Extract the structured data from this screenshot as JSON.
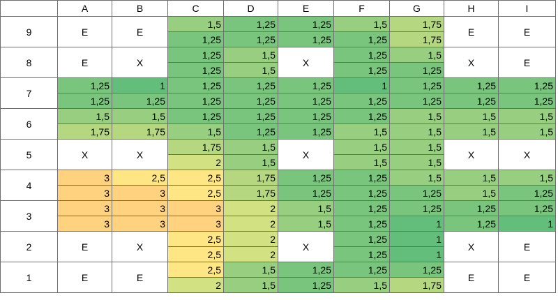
{
  "columns": [
    "A",
    "B",
    "C",
    "D",
    "E",
    "F",
    "G",
    "H",
    "I"
  ],
  "rows": [
    {
      "label": "9",
      "cells": [
        {
          "t": "E"
        },
        {
          "t": "E"
        },
        {
          "v": [
            "1,5",
            "1,25"
          ]
        },
        {
          "v": [
            "1,25",
            "1,25"
          ]
        },
        {
          "v": [
            "1,25",
            "1,25"
          ]
        },
        {
          "v": [
            "1,5",
            "1,25"
          ]
        },
        {
          "v": [
            "1,75",
            "1,75"
          ]
        },
        {
          "t": "E"
        },
        {
          "t": "E"
        }
      ]
    },
    {
      "label": "8",
      "cells": [
        {
          "t": "E"
        },
        {
          "t": "X"
        },
        {
          "v": [
            "1,25",
            "1,25"
          ]
        },
        {
          "v": [
            "1,5",
            "1,5"
          ]
        },
        {
          "t": "X"
        },
        {
          "v": [
            "1,25",
            "1,25"
          ]
        },
        {
          "v": [
            "1,5",
            "1,25"
          ]
        },
        {
          "t": "X"
        },
        {
          "t": "E"
        }
      ]
    },
    {
      "label": "7",
      "cells": [
        {
          "v": [
            "1,25",
            "1,25"
          ]
        },
        {
          "v": [
            "1",
            "1,25"
          ]
        },
        {
          "v": [
            "1,25",
            "1,25"
          ]
        },
        {
          "v": [
            "1,25",
            "1,25"
          ]
        },
        {
          "v": [
            "1,25",
            "1,25"
          ]
        },
        {
          "v": [
            "1",
            "1,25"
          ]
        },
        {
          "v": [
            "1,25",
            "1,25"
          ]
        },
        {
          "v": [
            "1,25",
            "1,25"
          ]
        },
        {
          "v": [
            "1,25",
            "1,25"
          ]
        }
      ]
    },
    {
      "label": "6",
      "cells": [
        {
          "v": [
            "1,5",
            "1,75"
          ]
        },
        {
          "v": [
            "1,5",
            "1,75"
          ]
        },
        {
          "v": [
            "1,25",
            "1,5"
          ]
        },
        {
          "v": [
            "1,25",
            "1,25"
          ]
        },
        {
          "v": [
            "1,25",
            "1,25"
          ]
        },
        {
          "v": [
            "1,25",
            "1,5"
          ]
        },
        {
          "v": [
            "1,5",
            "1,5"
          ]
        },
        {
          "v": [
            "1,5",
            "1,5"
          ]
        },
        {
          "v": [
            "1,5",
            "1,5"
          ]
        }
      ]
    },
    {
      "label": "5",
      "cells": [
        {
          "t": "X"
        },
        {
          "t": "X"
        },
        {
          "v": [
            "1,75",
            "2"
          ]
        },
        {
          "v": [
            "1,5",
            "1,5"
          ]
        },
        {
          "t": "X"
        },
        {
          "v": [
            "1,5",
            "1,5"
          ]
        },
        {
          "v": [
            "1,5",
            "1,5"
          ]
        },
        {
          "t": "X"
        },
        {
          "t": "X"
        }
      ]
    },
    {
      "label": "4",
      "cells": [
        {
          "v": [
            "3",
            "3"
          ]
        },
        {
          "v": [
            "2,5",
            "3"
          ]
        },
        {
          "v": [
            "2,5",
            "2,5"
          ]
        },
        {
          "v": [
            "1,75",
            "1,75"
          ]
        },
        {
          "v": [
            "1,25",
            "1,25"
          ]
        },
        {
          "v": [
            "1,25",
            "1,25"
          ]
        },
        {
          "v": [
            "1,5",
            "1,25"
          ]
        },
        {
          "v": [
            "1,5",
            "1,5"
          ]
        },
        {
          "v": [
            "1,5",
            "1,25"
          ]
        }
      ]
    },
    {
      "label": "3",
      "cells": [
        {
          "v": [
            "3",
            "3"
          ]
        },
        {
          "v": [
            "3",
            "3"
          ]
        },
        {
          "v": [
            "3",
            "3"
          ]
        },
        {
          "v": [
            "2",
            "2"
          ]
        },
        {
          "v": [
            "1,5",
            "1,5"
          ]
        },
        {
          "v": [
            "1,25",
            "1,25"
          ]
        },
        {
          "v": [
            "1,25",
            "1"
          ]
        },
        {
          "v": [
            "1,25",
            "1,25"
          ]
        },
        {
          "v": [
            "1,25",
            "1"
          ]
        }
      ]
    },
    {
      "label": "2",
      "cells": [
        {
          "t": "E"
        },
        {
          "t": "X"
        },
        {
          "v": [
            "2,5",
            "2,5"
          ]
        },
        {
          "v": [
            "2",
            "2"
          ]
        },
        {
          "t": "X"
        },
        {
          "v": [
            "1,25",
            "1,25"
          ]
        },
        {
          "v": [
            "1",
            "1"
          ]
        },
        {
          "t": "X"
        },
        {
          "t": "E"
        }
      ]
    },
    {
      "label": "1",
      "cells": [
        {
          "t": "E"
        },
        {
          "t": "E"
        },
        {
          "v": [
            "2,5",
            "2"
          ]
        },
        {
          "v": [
            "1,5",
            "1,5"
          ]
        },
        {
          "v": [
            "1,25",
            "1,25"
          ]
        },
        {
          "v": [
            "1,25",
            "1,5"
          ]
        },
        {
          "v": [
            "1,25",
            "1,75"
          ]
        },
        {
          "t": "E"
        },
        {
          "t": "E"
        }
      ]
    }
  ],
  "color_scale": {
    "1": "#63be7b",
    "1.25": "#7ac57d",
    "1.5": "#97ce7f",
    "1.75": "#b4d780",
    "2": "#d2e182",
    "2.5": "#ffe684",
    "3": "#ffd27f"
  }
}
